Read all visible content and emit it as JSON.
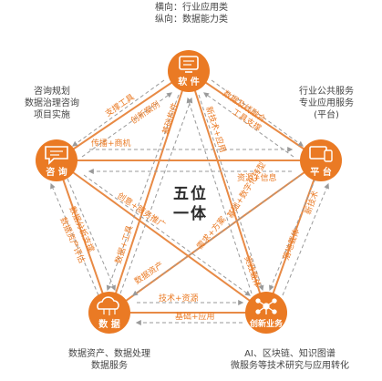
{
  "colors": {
    "orange": "#ea7a24",
    "orange_light": "#f3a266",
    "line": "#e88a45",
    "dash": "#9a9a9a",
    "text": "#444444",
    "white": "#ffffff"
  },
  "top_note": {
    "line1": "横向：行业应用类",
    "line2": "纵向：数据能力类"
  },
  "center": {
    "line1": "五位",
    "line2": "一体"
  },
  "nodes": {
    "software": {
      "label": "软 件",
      "icon": "computer-icon"
    },
    "consulting": {
      "label": "咨 询",
      "icon": "chat-icon"
    },
    "platform": {
      "label": "平 台",
      "icon": "devices-icon"
    },
    "data": {
      "label": "数 据",
      "icon": "cloud-icon"
    },
    "innovation": {
      "label": "创新业务",
      "icon": "network-icon"
    }
  },
  "notes": {
    "consulting": [
      "咨询规划",
      "数据治理咨询",
      "项目实施"
    ],
    "platform": [
      "行业公共服务",
      "专业应用服务",
      "(平台)"
    ],
    "data": [
      "数据资产、数据处理",
      "数据服务"
    ],
    "innovation": [
      "AI、区块链、知识图谱",
      "微服务等技术研究与应用转化"
    ]
  },
  "links": {
    "sw_consult_outer": "支撑工具",
    "sw_consult_inner": "创新案例",
    "sw_data_outer": "基础构件",
    "sw_data_inner": "数据+工具",
    "sw_innov_outer": "新技术+应用",
    "sw_innov_inner": "需求+方案",
    "sw_platform_outer": "数据及线融合",
    "sw_platform_inner": "工具支撑",
    "consult_platform_top": "传播+商机",
    "consult_platform_bottom": "资源+信息",
    "consult_innov": "创意+服务推广",
    "consult_data_outer": "数据分析支撑",
    "consult_data_inner": "数据资产评估",
    "platform_data": "基础+数字化转型",
    "platform_innov_outer": "新技术",
    "platform_innov_inner": "落地载体",
    "data_innov_top": "技术+资源",
    "data_innov_bottom": "基础+应用",
    "innov_data_diag": "实践载体",
    "data_platform_diag": "数据资产"
  }
}
